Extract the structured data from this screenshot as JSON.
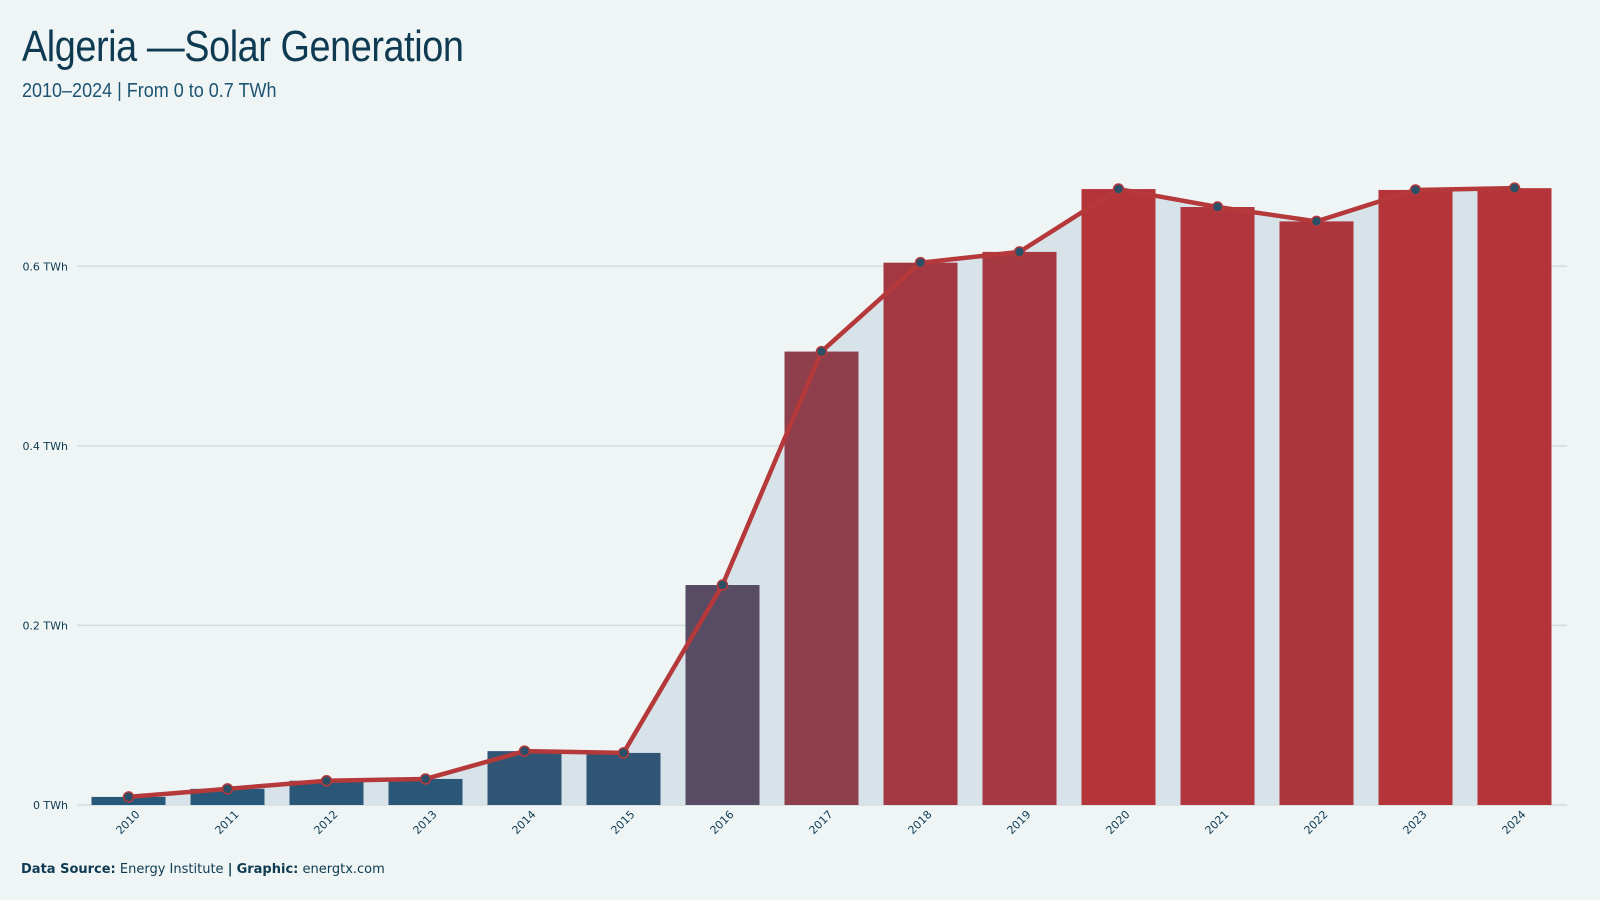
{
  "header": {
    "title": "Algeria —Solar Generation",
    "subtitle": "2010–2024 | From 0 to 0.7 TWh"
  },
  "footer": {
    "source_label": "Data Source:",
    "source_value": "Energy Institute",
    "separator": "|",
    "graphic_label": "Graphic:",
    "graphic_value": "energtx.com"
  },
  "colors": {
    "background": "#eff5f5",
    "area_fill": "#d7e3e8",
    "line": "#b5393b",
    "bar_low": "#26587a",
    "bar_high": "#b5343a",
    "marker": "#2b4f67",
    "gridline": "#d3dcdf"
  },
  "chart_data": {
    "type": "bar",
    "categories": [
      "2010",
      "2011",
      "2012",
      "2013",
      "2014",
      "2015",
      "2016",
      "2017",
      "2018",
      "2019",
      "2020",
      "2021",
      "2022",
      "2023",
      "2024"
    ],
    "values": [
      0.009,
      0.018,
      0.027,
      0.029,
      0.06,
      0.058,
      0.245,
      0.505,
      0.604,
      0.616,
      0.686,
      0.666,
      0.65,
      0.685,
      0.687
    ],
    "series": [
      {
        "type": "bar",
        "values": [
          0.009,
          0.018,
          0.027,
          0.029,
          0.06,
          0.058,
          0.245,
          0.505,
          0.604,
          0.616,
          0.686,
          0.666,
          0.65,
          0.685,
          0.687
        ]
      },
      {
        "type": "line",
        "values": [
          0.009,
          0.018,
          0.027,
          0.029,
          0.06,
          0.058,
          0.245,
          0.505,
          0.604,
          0.616,
          0.686,
          0.666,
          0.65,
          0.685,
          0.687
        ]
      }
    ],
    "yticks": [
      0,
      0.2,
      0.4,
      0.6
    ],
    "ytick_labels": [
      "0 TWh",
      "0.2 TWh",
      "0.4 TWh",
      "0.6 TWh"
    ],
    "ylim": [
      0,
      0.7
    ],
    "unit": "TWh",
    "grid": true,
    "title": "Algeria —Solar Generation",
    "xlabel": "",
    "ylabel": ""
  }
}
